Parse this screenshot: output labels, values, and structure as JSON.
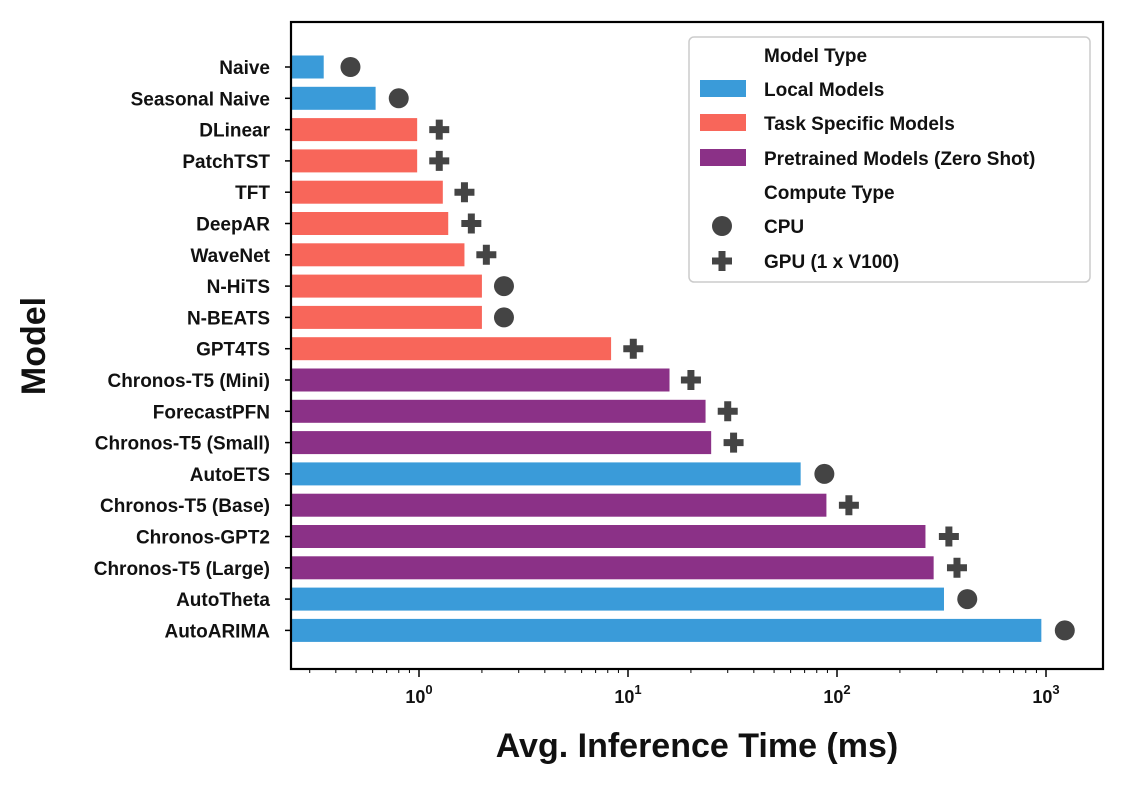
{
  "chart_data": {
    "type": "bar",
    "orientation": "horizontal",
    "x_scale": "log",
    "xlim": [
      0.24,
      1600
    ],
    "xlabel": "Avg. Inference Time (ms)",
    "ylabel": "Model",
    "x_ticks": [
      {
        "value": 1,
        "base": "10",
        "exp": "0"
      },
      {
        "value": 10,
        "base": "10",
        "exp": "1"
      },
      {
        "value": 100,
        "base": "10",
        "exp": "2"
      },
      {
        "value": 1000,
        "base": "10",
        "exp": "3"
      }
    ],
    "colors": {
      "local": "#3a9bd9",
      "task": "#f8665a",
      "pretrained": "#8b3187",
      "marker": "#444444"
    },
    "rows": [
      {
        "model": "Naive",
        "type": "local",
        "value": 0.35,
        "compute": "cpu",
        "marker": 0.47
      },
      {
        "model": "Seasonal Naive",
        "type": "local",
        "value": 0.62,
        "compute": "cpu",
        "marker": 0.8
      },
      {
        "model": "DLinear",
        "type": "task",
        "value": 0.98,
        "compute": "gpu",
        "marker": 1.25
      },
      {
        "model": "PatchTST",
        "type": "task",
        "value": 0.98,
        "compute": "gpu",
        "marker": 1.25
      },
      {
        "model": "TFT",
        "type": "task",
        "value": 1.3,
        "compute": "gpu",
        "marker": 1.65
      },
      {
        "model": "DeepAR",
        "type": "task",
        "value": 1.38,
        "compute": "gpu",
        "marker": 1.78
      },
      {
        "model": "WaveNet",
        "type": "task",
        "value": 1.65,
        "compute": "gpu",
        "marker": 2.1
      },
      {
        "model": "N-HiTS",
        "type": "task",
        "value": 2.0,
        "compute": "cpu",
        "marker": 2.55
      },
      {
        "model": "N-BEATS",
        "type": "task",
        "value": 2.0,
        "compute": "cpu",
        "marker": 2.55
      },
      {
        "model": "GPT4TS",
        "type": "task",
        "value": 8.3,
        "compute": "gpu",
        "marker": 10.6
      },
      {
        "model": "Chronos-T5 (Mini)",
        "type": "pretrained",
        "value": 15.8,
        "compute": "gpu",
        "marker": 20
      },
      {
        "model": "ForecastPFN",
        "type": "pretrained",
        "value": 23.5,
        "compute": "gpu",
        "marker": 30
      },
      {
        "model": "Chronos-T5 (Small)",
        "type": "pretrained",
        "value": 25,
        "compute": "gpu",
        "marker": 32
      },
      {
        "model": "AutoETS",
        "type": "local",
        "value": 67,
        "compute": "cpu",
        "marker": 87
      },
      {
        "model": "Chronos-T5 (Base)",
        "type": "pretrained",
        "value": 89,
        "compute": "gpu",
        "marker": 114
      },
      {
        "model": "Chronos-GPT2",
        "type": "pretrained",
        "value": 265,
        "compute": "gpu",
        "marker": 343
      },
      {
        "model": "Chronos-T5 (Large)",
        "type": "pretrained",
        "value": 290,
        "compute": "gpu",
        "marker": 375
      },
      {
        "model": "AutoTheta",
        "type": "local",
        "value": 325,
        "compute": "cpu",
        "marker": 420
      },
      {
        "model": "AutoARIMA",
        "type": "local",
        "value": 950,
        "compute": "cpu",
        "marker": 1230
      }
    ],
    "legend": {
      "position": "top-right",
      "title_model_type": "Model Type",
      "local": "Local Models",
      "task": "Task Specific Models",
      "pretrained": "Pretrained Models (Zero Shot)",
      "title_compute_type": "Compute Type",
      "cpu": "CPU",
      "gpu": "GPU (1 x V100)"
    }
  }
}
